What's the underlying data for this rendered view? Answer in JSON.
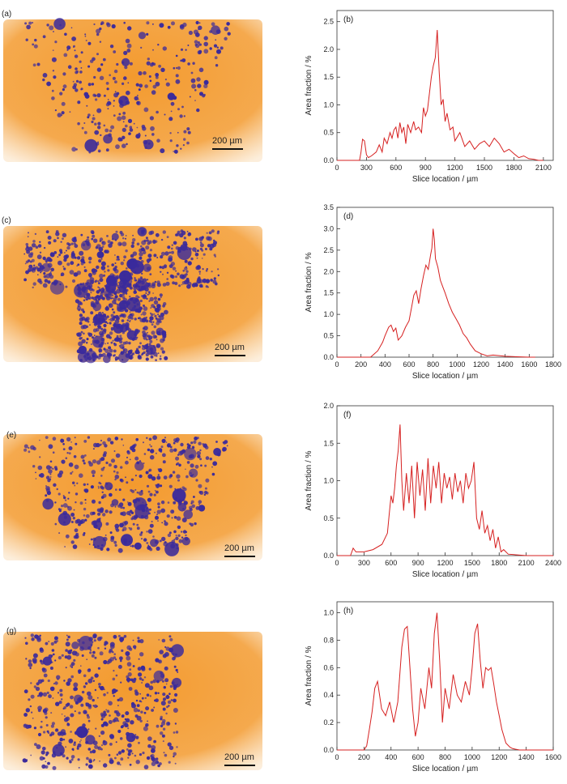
{
  "tomograms": [
    {
      "panel_label": "(a)",
      "scale_label": "200 µm",
      "colors": {
        "matrix": "#f39a2e",
        "pores": "#3a2a9c"
      }
    },
    {
      "panel_label": "(c)",
      "scale_label": "200 µm",
      "colors": {
        "matrix": "#f39a2e",
        "pores": "#3a2a9c"
      }
    },
    {
      "panel_label": "(e)",
      "scale_label": "200 µm",
      "colors": {
        "matrix": "#f39a2e",
        "pores": "#3a2a9c"
      }
    },
    {
      "panel_label": "(g)",
      "scale_label": "200 µm",
      "colors": {
        "matrix": "#f39a2e",
        "pores": "#3a2a9c"
      }
    }
  ],
  "chart_data": [
    {
      "type": "line",
      "panel_label": "(b)",
      "xlabel": "Slice location / µm",
      "ylabel": "Area fraction / %",
      "xlim": [
        0,
        2200
      ],
      "ylim": [
        0,
        2.7
      ],
      "xticks": [
        0,
        300,
        600,
        900,
        1200,
        1500,
        1800,
        2100
      ],
      "yticks": [
        0.0,
        0.5,
        1.0,
        1.5,
        2.0,
        2.5
      ],
      "line_color": "#d62020",
      "series": [
        {
          "x": [
            0,
            230,
            245,
            260,
            280,
            300,
            320,
            350,
            400,
            430,
            460,
            480,
            510,
            540,
            560,
            580,
            600,
            620,
            640,
            660,
            680,
            700,
            720,
            750,
            780,
            800,
            830,
            860,
            880,
            900,
            920,
            940,
            960,
            980,
            1000,
            1020,
            1040,
            1060,
            1080,
            1100,
            1120,
            1150,
            1180,
            1200,
            1250,
            1300,
            1350,
            1400,
            1450,
            1500,
            1550,
            1600,
            1650,
            1700,
            1750,
            1800,
            1850,
            1900,
            1950,
            2000,
            2050,
            2100
          ],
          "y": [
            0,
            0.0,
            0.15,
            0.38,
            0.35,
            0.1,
            0.05,
            0.08,
            0.15,
            0.28,
            0.15,
            0.4,
            0.3,
            0.5,
            0.4,
            0.55,
            0.6,
            0.4,
            0.68,
            0.5,
            0.6,
            0.3,
            0.65,
            0.5,
            0.7,
            0.55,
            0.6,
            0.5,
            0.95,
            0.8,
            0.9,
            1.2,
            1.5,
            1.7,
            1.85,
            2.35,
            1.6,
            1.0,
            1.1,
            0.7,
            0.85,
            0.55,
            0.6,
            0.35,
            0.5,
            0.25,
            0.35,
            0.2,
            0.3,
            0.35,
            0.25,
            0.4,
            0.3,
            0.15,
            0.2,
            0.12,
            0.05,
            0.08,
            0.03,
            0.02,
            0.0,
            0.0
          ]
        }
      ]
    },
    {
      "type": "line",
      "panel_label": "(d)",
      "xlabel": "Slice location / µm",
      "ylabel": "Area fraction / %",
      "xlim": [
        0,
        1800
      ],
      "ylim": [
        0,
        3.5
      ],
      "xticks": [
        0,
        200,
        400,
        600,
        800,
        1000,
        1200,
        1400,
        1600,
        1800
      ],
      "yticks": [
        0.0,
        0.5,
        1.0,
        1.5,
        2.0,
        2.5,
        3.0,
        3.5
      ],
      "line_color": "#d62020",
      "series": [
        {
          "x": [
            0,
            280,
            300,
            340,
            380,
            400,
            430,
            450,
            470,
            490,
            510,
            540,
            570,
            600,
            620,
            640,
            660,
            680,
            700,
            720,
            740,
            760,
            780,
            790,
            800,
            810,
            820,
            840,
            860,
            880,
            900,
            930,
            960,
            990,
            1020,
            1050,
            1080,
            1110,
            1150,
            1200,
            1250,
            1300,
            1400,
            1500,
            1600,
            1650
          ],
          "y": [
            0,
            0.0,
            0.05,
            0.15,
            0.35,
            0.5,
            0.7,
            0.75,
            0.6,
            0.68,
            0.4,
            0.5,
            0.7,
            0.85,
            1.15,
            1.45,
            1.55,
            1.25,
            1.6,
            1.9,
            2.15,
            2.05,
            2.4,
            2.55,
            3.0,
            2.75,
            2.3,
            2.1,
            1.8,
            1.65,
            1.5,
            1.25,
            1.05,
            0.9,
            0.75,
            0.55,
            0.45,
            0.3,
            0.15,
            0.08,
            0.03,
            0.05,
            0.02,
            0.01,
            0.0,
            0.0
          ]
        }
      ]
    },
    {
      "type": "line",
      "panel_label": "(f)",
      "xlabel": "Slice location / µm",
      "ylabel": "Area fraction / %",
      "xlim": [
        0,
        2400
      ],
      "ylim": [
        0,
        2.0
      ],
      "xticks": [
        0,
        300,
        600,
        900,
        1200,
        1500,
        1800,
        2100,
        2400
      ],
      "yticks": [
        0.0,
        0.5,
        1.0,
        1.5,
        2.0
      ],
      "line_color": "#d62020",
      "series": [
        {
          "x": [
            0,
            150,
            180,
            210,
            300,
            400,
            500,
            560,
            580,
            600,
            620,
            640,
            660,
            680,
            700,
            720,
            740,
            770,
            800,
            830,
            860,
            890,
            920,
            950,
            980,
            1010,
            1040,
            1070,
            1100,
            1130,
            1160,
            1190,
            1220,
            1250,
            1280,
            1310,
            1340,
            1370,
            1400,
            1430,
            1460,
            1490,
            1520,
            1550,
            1580,
            1610,
            1640,
            1670,
            1700,
            1730,
            1760,
            1790,
            1820,
            1850,
            1900,
            2000,
            2100,
            2400
          ],
          "y": [
            0,
            0.0,
            0.1,
            0.05,
            0.05,
            0.08,
            0.15,
            0.3,
            0.55,
            0.8,
            0.7,
            0.9,
            1.2,
            1.4,
            1.75,
            1.0,
            0.6,
            1.1,
            0.7,
            1.2,
            0.5,
            1.25,
            0.8,
            1.15,
            0.6,
            1.3,
            0.7,
            1.2,
            0.9,
            1.25,
            0.7,
            1.1,
            0.9,
            1.05,
            0.75,
            1.1,
            0.85,
            1.0,
            0.7,
            1.1,
            0.9,
            1.0,
            1.25,
            0.5,
            0.35,
            0.6,
            0.3,
            0.4,
            0.2,
            0.35,
            0.1,
            0.25,
            0.05,
            0.08,
            0.02,
            0.01,
            0.0,
            0.0
          ]
        }
      ]
    },
    {
      "type": "line",
      "panel_label": "(h)",
      "xlabel": "Slice location / µm",
      "ylabel": "Area fraction / %",
      "xlim": [
        0,
        1600
      ],
      "ylim": [
        0,
        1.08
      ],
      "xticks": [
        0,
        200,
        400,
        600,
        800,
        1000,
        1200,
        1400,
        1600
      ],
      "yticks": [
        0.0,
        0.2,
        0.4,
        0.6,
        0.8,
        1.0
      ],
      "line_color": "#d62020",
      "series": [
        {
          "x": [
            0,
            200,
            220,
            240,
            260,
            280,
            300,
            330,
            360,
            390,
            420,
            450,
            480,
            500,
            520,
            540,
            560,
            580,
            600,
            620,
            650,
            680,
            700,
            720,
            740,
            760,
            780,
            800,
            830,
            860,
            890,
            920,
            950,
            980,
            1000,
            1020,
            1040,
            1060,
            1080,
            1100,
            1120,
            1140,
            1160,
            1180,
            1200,
            1220,
            1250,
            1280,
            1300,
            1350,
            1400,
            1600
          ],
          "y": [
            0,
            0.0,
            0.03,
            0.15,
            0.28,
            0.45,
            0.5,
            0.3,
            0.25,
            0.35,
            0.2,
            0.35,
            0.75,
            0.88,
            0.9,
            0.6,
            0.3,
            0.1,
            0.2,
            0.45,
            0.3,
            0.6,
            0.45,
            0.85,
            1.0,
            0.65,
            0.2,
            0.45,
            0.3,
            0.55,
            0.4,
            0.35,
            0.5,
            0.4,
            0.6,
            0.85,
            0.92,
            0.65,
            0.45,
            0.6,
            0.58,
            0.6,
            0.48,
            0.35,
            0.25,
            0.15,
            0.05,
            0.02,
            0.01,
            0.0,
            0.0,
            0.0
          ]
        }
      ]
    }
  ]
}
